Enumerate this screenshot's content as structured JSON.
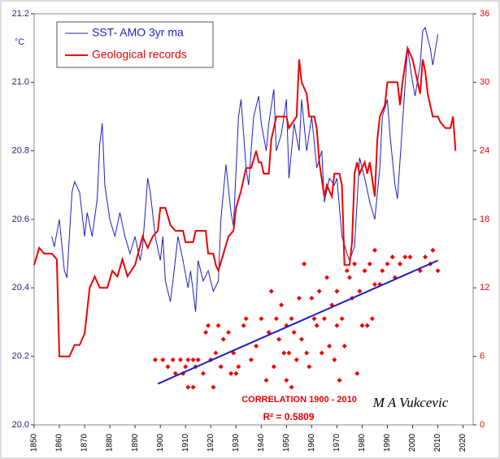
{
  "chart_data": {
    "type": "line",
    "y_label": "°C",
    "annotations": [
      "CORRELATION  1900 - 2010",
      "R² = 0.5809",
      "M A Vukcevic"
    ],
    "xlim": [
      1850,
      2024
    ],
    "xticks": [
      1850,
      1860,
      1870,
      1880,
      1890,
      1900,
      1910,
      1920,
      1930,
      1940,
      1950,
      1960,
      1970,
      1980,
      1990,
      2000,
      2010,
      2020
    ],
    "ylim": [
      20.0,
      21.2
    ],
    "yticks": [
      {
        "value": 20.0,
        "label": "20.0"
      },
      20.2,
      20.4,
      20.6,
      20.8,
      {
        "value": 21.0,
        "label": "21.0"
      },
      21.2
    ],
    "y2lim": [
      0,
      36
    ],
    "y2ticks": [
      0,
      6,
      12,
      18,
      24,
      30,
      36
    ],
    "legend": "upper left",
    "series": [
      {
        "name": "SST- AMO 3yr ma",
        "color": "#1f1fbf",
        "type": "line",
        "x": [
          1857,
          1858,
          1860,
          1862,
          1863,
          1865,
          1866,
          1868,
          1870,
          1871,
          1873,
          1875,
          1876,
          1877,
          1878,
          1880,
          1882,
          1884,
          1886,
          1888,
          1890,
          1892,
          1893,
          1895,
          1896,
          1898,
          1900,
          1901,
          1902,
          1904,
          1905,
          1907,
          1909,
          1911,
          1912,
          1914,
          1915,
          1917,
          1919,
          1921,
          1923,
          1924,
          1926,
          1928,
          1929,
          1931,
          1932,
          1934,
          1935,
          1937,
          1939,
          1940,
          1942,
          1943,
          1945,
          1946,
          1948,
          1950,
          1951,
          1953,
          1955,
          1956,
          1958,
          1960,
          1962,
          1964,
          1965,
          1967,
          1969,
          1970,
          1972,
          1974,
          1975,
          1977,
          1979,
          1981,
          1983,
          1985,
          1987,
          1988,
          1990,
          1991,
          1993,
          1994,
          1996,
          1998,
          2000,
          2001,
          2003,
          2004,
          2005,
          2007,
          2008,
          2010
        ],
        "values": [
          20.55,
          20.52,
          20.6,
          20.45,
          20.43,
          20.68,
          20.71,
          20.68,
          20.55,
          20.62,
          20.55,
          20.66,
          20.82,
          20.88,
          20.7,
          20.6,
          20.55,
          20.62,
          20.55,
          20.5,
          20.55,
          20.48,
          20.52,
          20.72,
          20.68,
          20.55,
          20.48,
          20.55,
          20.42,
          20.36,
          20.42,
          20.55,
          20.48,
          20.4,
          20.45,
          20.33,
          20.48,
          20.42,
          20.45,
          20.39,
          20.42,
          20.6,
          20.76,
          20.62,
          20.58,
          20.9,
          20.95,
          20.75,
          20.7,
          20.9,
          20.96,
          20.88,
          20.8,
          20.88,
          20.98,
          20.8,
          20.85,
          20.95,
          20.72,
          20.88,
          20.8,
          20.95,
          20.8,
          20.9,
          20.75,
          20.8,
          20.65,
          20.72,
          20.7,
          20.72,
          20.55,
          20.5,
          20.48,
          20.52,
          20.78,
          20.72,
          20.65,
          20.6,
          20.75,
          20.9,
          20.95,
          20.85,
          20.7,
          20.66,
          20.88,
          21.1,
          21.0,
          20.96,
          21.05,
          21.15,
          21.16,
          21.1,
          21.05,
          21.14
        ]
      },
      {
        "name": "Geological records",
        "color": "#ee0000",
        "type": "line",
        "axis": "y2",
        "x": [
          1850,
          1852,
          1854,
          1857,
          1859,
          1860,
          1864,
          1866,
          1868,
          1870,
          1872,
          1874,
          1876,
          1879,
          1881,
          1883,
          1885,
          1887,
          1890,
          1893,
          1895,
          1897,
          1899,
          1900,
          1902,
          1904,
          1906,
          1909,
          1910,
          1913,
          1914,
          1918,
          1919,
          1921,
          1922,
          1923,
          1925,
          1927,
          1929,
          1930,
          1932,
          1934,
          1936,
          1938,
          1939,
          1940,
          1941,
          1943,
          1944,
          1946,
          1950,
          1951,
          1954,
          1955,
          1956,
          1958,
          1959,
          1961,
          1962,
          1963,
          1965,
          1966,
          1968,
          1969,
          1971,
          1972,
          1973,
          1975,
          1976,
          1977,
          1978,
          1979,
          1981,
          1982,
          1983,
          1985,
          1986,
          1987,
          1989,
          1990,
          1994,
          1995,
          1996,
          1998,
          2000,
          2002,
          2003,
          2004,
          2005,
          2006,
          2008,
          2010,
          2011,
          2013,
          2015,
          2016,
          2017
        ],
        "values": [
          14,
          15.5,
          15,
          15,
          14.5,
          6,
          6,
          7,
          7,
          8,
          12,
          13,
          12,
          12,
          13.5,
          13,
          14.5,
          13,
          14,
          16.5,
          15.5,
          16.5,
          17,
          19,
          19,
          17.5,
          17,
          17,
          16,
          16,
          17,
          17,
          15,
          15,
          14,
          13.5,
          15,
          16.5,
          17,
          19,
          20.5,
          22.5,
          22.5,
          24,
          23,
          23,
          22,
          22,
          25,
          27,
          27,
          26,
          27,
          32,
          30,
          29,
          27,
          27,
          26,
          23,
          20,
          21,
          20,
          22,
          22,
          21,
          14,
          14,
          16,
          22,
          23,
          22,
          23,
          22,
          23,
          20,
          25,
          27,
          28,
          30,
          30,
          28,
          30,
          33,
          32,
          30,
          29,
          32,
          31,
          29,
          27,
          27,
          26.5,
          26,
          26,
          27,
          24
        ]
      },
      {
        "color": "#ee0000",
        "type": "scatter",
        "x": [
          1898,
          1901,
          1903,
          1905,
          1906,
          1908,
          1909,
          1910,
          1911,
          1911,
          1913,
          1913,
          1914,
          1915,
          1917,
          1918,
          1919,
          1920,
          1921,
          1922,
          1923,
          1924,
          1925,
          1927,
          1928,
          1929,
          1930,
          1931,
          1933,
          1934,
          1936,
          1938,
          1940,
          1942,
          1943,
          1944,
          1945,
          1946,
          1947,
          1948,
          1949,
          1950,
          1950,
          1951,
          1952,
          1952,
          1953,
          1954,
          1955,
          1956,
          1957,
          1958,
          1959,
          1960,
          1961,
          1962,
          1963,
          1964,
          1965,
          1966,
          1967,
          1968,
          1969,
          1970,
          1970,
          1971,
          1972,
          1973,
          1974,
          1975,
          1976,
          1977,
          1978,
          1979,
          1980,
          1981,
          1982,
          1983,
          1984,
          1985,
          1985,
          1987,
          1988,
          1990,
          1992,
          1993,
          1995,
          1997,
          1999,
          2003,
          2005,
          2007,
          2008,
          2010
        ],
        "values": [
          20.19,
          20.19,
          20.17,
          20.19,
          20.15,
          20.19,
          20.15,
          20.17,
          20.19,
          20.11,
          20.11,
          20.19,
          20.17,
          20.19,
          20.15,
          20.27,
          20.29,
          20.19,
          20.11,
          20.21,
          20.29,
          20.17,
          20.25,
          20.27,
          20.15,
          20.21,
          20.15,
          20.17,
          20.29,
          20.31,
          20.19,
          20.23,
          20.31,
          20.13,
          20.27,
          20.39,
          20.17,
          20.31,
          20.25,
          20.35,
          20.21,
          20.13,
          20.29,
          20.21,
          20.11,
          20.31,
          20.27,
          20.19,
          20.37,
          20.25,
          20.47,
          20.21,
          20.17,
          20.37,
          20.31,
          20.29,
          20.39,
          20.21,
          20.31,
          20.43,
          20.23,
          20.35,
          20.19,
          20.29,
          20.39,
          20.13,
          20.31,
          20.23,
          20.45,
          20.43,
          20.37,
          20.47,
          20.15,
          20.39,
          20.29,
          20.45,
          20.29,
          20.47,
          20.31,
          20.41,
          20.51,
          20.41,
          20.45,
          20.47,
          20.49,
          20.43,
          20.47,
          20.49,
          20.49,
          20.45,
          20.49,
          20.47,
          20.51,
          20.45
        ]
      },
      {
        "color": "#1f1fbf",
        "type": "line",
        "x": [
          1899,
          2010
        ],
        "values": [
          20.12,
          20.48
        ]
      }
    ]
  }
}
